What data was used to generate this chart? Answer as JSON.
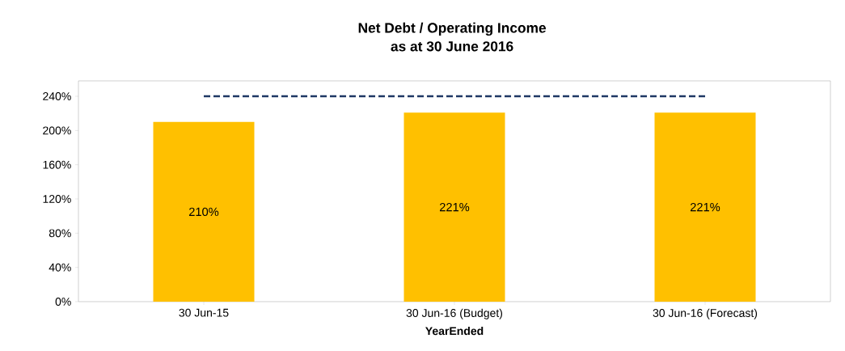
{
  "chart_data": {
    "type": "bar",
    "title": "Net Debt / Operating Income",
    "subtitle": "as at 30 June 2016",
    "xlabel": "YearEnded",
    "categories": [
      "30 Jun-15",
      "30 Jun-16 (Budget)",
      "30 Jun-16 (Forecast)"
    ],
    "values": [
      210,
      221,
      221
    ],
    "value_labels": [
      "210%",
      "221%",
      "221%"
    ],
    "color": "#ffc000",
    "ylim": [
      0,
      258
    ],
    "yticks": [
      {
        "value": 0,
        "label": "0%"
      },
      {
        "value": 40,
        "label": "40%"
      },
      {
        "value": 80,
        "label": "80%"
      },
      {
        "value": 120,
        "label": "120%"
      },
      {
        "value": 160,
        "label": "160%"
      },
      {
        "value": 200,
        "label": "200%"
      },
      {
        "value": 240,
        "label": "240%"
      }
    ],
    "ref_lines": [
      {
        "axis": "y",
        "value": 240,
        "color": "#1f3864",
        "line_style": "dashed"
      }
    ],
    "grid": false
  }
}
